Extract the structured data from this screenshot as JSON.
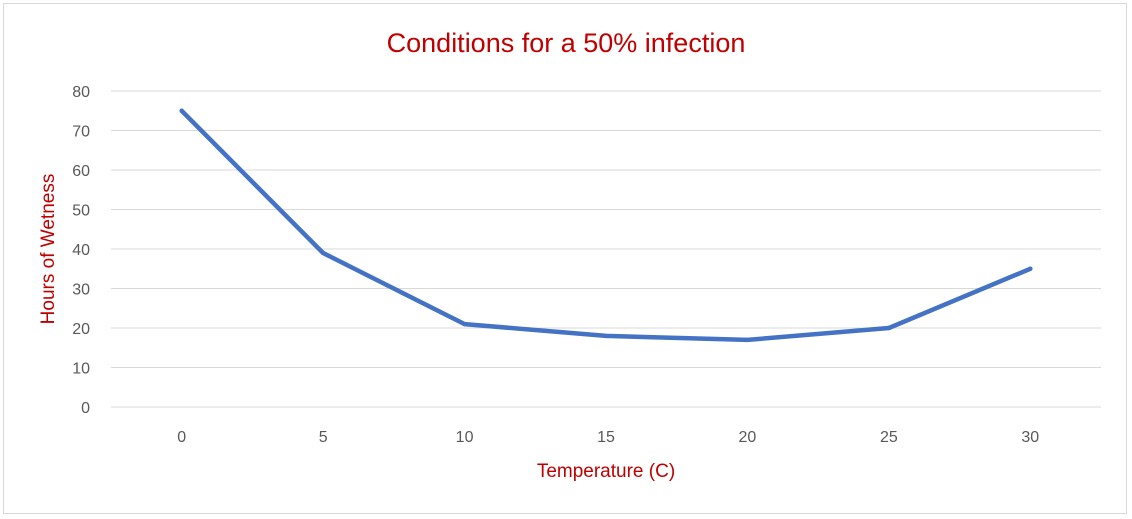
{
  "chart_data": {
    "type": "line",
    "title": "Conditions for a 50% infection",
    "xlabel": "Temperature (C)",
    "ylabel": "Hours of Wetness",
    "categories": [
      "0",
      "5",
      "10",
      "15",
      "20",
      "25",
      "30"
    ],
    "series": [
      {
        "values": [
          75,
          39,
          21,
          18,
          17,
          20,
          35
        ]
      }
    ],
    "ylim": [
      0,
      80
    ],
    "yticks": [
      "0",
      "10",
      "20",
      "30",
      "40",
      "50",
      "60",
      "70",
      "80"
    ],
    "grid": true,
    "legend": "none",
    "colors": {
      "series": "#4472c4",
      "title": "#c00000",
      "axis_labels": "#c00000",
      "ticks": "#595959",
      "grid": "#d9d9d9"
    }
  }
}
